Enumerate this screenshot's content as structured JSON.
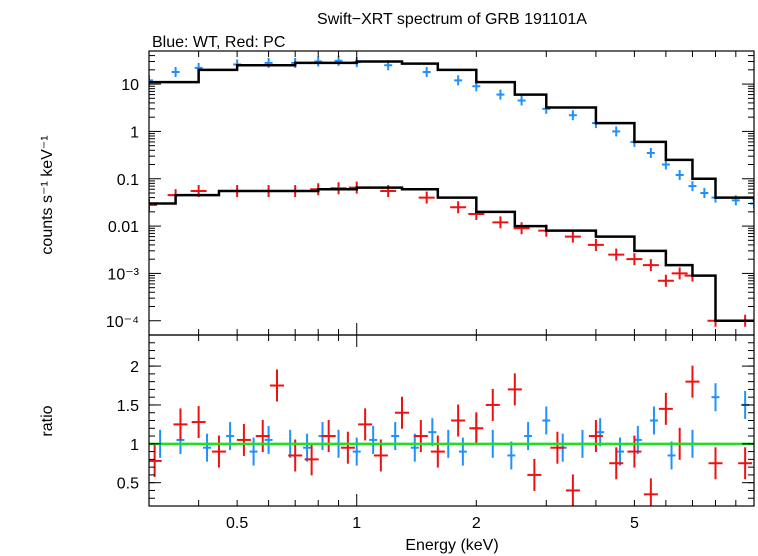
{
  "title": "Swift−XRT spectrum of GRB 191101A",
  "subtitle": "Blue: WT, Red: PC",
  "colors": {
    "wt": "#1e90ff",
    "pc": "#ee1111",
    "model": "#000000",
    "unity": "#22dd22"
  },
  "chart_data": [
    {
      "type": "scatter",
      "panel": "spectrum",
      "xlabel": "Energy (keV)",
      "ylabel": "counts s⁻¹ keV⁻¹",
      "xscale": "log",
      "yscale": "log",
      "xlim": [
        0.3,
        10
      ],
      "ylim": [
        5e-05,
        50
      ],
      "y_tick_labels": [
        "10",
        "1",
        "0.1",
        "0.01",
        "10⁻³",
        "10⁻⁴"
      ],
      "y_tick_values": [
        10,
        1,
        0.1,
        0.01,
        0.001,
        0.0001
      ],
      "series": [
        {
          "name": "WT",
          "color": "#1e90ff",
          "x": [
            0.3,
            0.35,
            0.4,
            0.5,
            0.6,
            0.7,
            0.8,
            0.9,
            1.0,
            1.2,
            1.5,
            1.8,
            2.0,
            2.3,
            2.6,
            3.0,
            3.5,
            4.0,
            4.5,
            5.0,
            5.5,
            6.0,
            6.5,
            7.0,
            7.5,
            8.0,
            9.0,
            10.0
          ],
          "y": [
            12,
            18,
            22,
            26,
            28,
            28,
            30,
            31,
            29,
            25,
            18,
            12,
            9,
            6,
            4.5,
            3,
            2.2,
            1.5,
            1.0,
            0.6,
            0.35,
            0.2,
            0.12,
            0.07,
            0.05,
            0.04,
            0.035,
            0.03
          ]
        },
        {
          "name": "PC",
          "color": "#ee1111",
          "x": [
            0.3,
            0.35,
            0.4,
            0.5,
            0.6,
            0.7,
            0.8,
            0.9,
            1.0,
            1.2,
            1.5,
            1.8,
            2.0,
            2.3,
            2.6,
            3.0,
            3.5,
            4.0,
            4.5,
            5.0,
            5.5,
            6.0,
            6.5,
            7.0,
            8.0,
            9.5
          ],
          "y": [
            0.028,
            0.045,
            0.055,
            0.055,
            0.055,
            0.055,
            0.06,
            0.063,
            0.065,
            0.055,
            0.04,
            0.025,
            0.018,
            0.012,
            0.009,
            0.008,
            0.006,
            0.004,
            0.0025,
            0.002,
            0.0015,
            0.0007,
            0.001,
            0.0009,
            0.0001,
            0.0001
          ]
        }
      ],
      "model": {
        "WT": {
          "x": [
            0.3,
            0.4,
            0.5,
            0.7,
            1.0,
            1.3,
            1.6,
            2.0,
            2.5,
            3.0,
            4.0,
            5.0,
            6.0,
            7.0,
            8.0,
            10.0
          ],
          "y": [
            11,
            20,
            25,
            28,
            30,
            27,
            20,
            11,
            6,
            3.2,
            1.5,
            0.6,
            0.25,
            0.1,
            0.04,
            0.035
          ]
        },
        "PC": {
          "x": [
            0.3,
            0.35,
            0.45,
            0.6,
            0.8,
            1.0,
            1.3,
            1.6,
            2.0,
            2.5,
            3.0,
            4.0,
            5.0,
            6.0,
            7.0,
            8.0,
            10.0
          ],
          "y": [
            0.03,
            0.045,
            0.055,
            0.055,
            0.06,
            0.065,
            0.06,
            0.04,
            0.02,
            0.01,
            0.008,
            0.006,
            0.003,
            0.0015,
            0.0009,
            0.0001,
            0.0001
          ]
        }
      }
    },
    {
      "type": "scatter",
      "panel": "ratio",
      "xlabel": "Energy (keV)",
      "ylabel": "ratio",
      "xscale": "log",
      "xlim": [
        0.3,
        10
      ],
      "ylim": [
        0.2,
        2.4
      ],
      "x_tick_labels": [
        "0.5",
        "1",
        "2",
        "5"
      ],
      "x_tick_values": [
        0.5,
        1,
        2,
        5
      ],
      "y_tick_labels": [
        "0.5",
        "1",
        "1.5",
        "2"
      ],
      "y_tick_values": [
        0.5,
        1,
        1.5,
        2
      ],
      "reference_line": 1,
      "series": [
        {
          "name": "WT",
          "color": "#1e90ff",
          "x": [
            0.32,
            0.36,
            0.42,
            0.48,
            0.55,
            0.6,
            0.68,
            0.75,
            0.82,
            0.9,
            1.0,
            1.1,
            1.25,
            1.4,
            1.55,
            1.7,
            1.85,
            2.0,
            2.2,
            2.45,
            2.7,
            3.0,
            3.3,
            3.7,
            4.1,
            4.6,
            5.1,
            5.6,
            6.2,
            7.0,
            8.0,
            9.5
          ],
          "y": [
            1.0,
            1.05,
            0.95,
            1.1,
            0.9,
            1.05,
            1.0,
            0.95,
            1.1,
            1.0,
            0.9,
            1.05,
            1.1,
            0.95,
            1.15,
            1.0,
            0.9,
            1.2,
            1.0,
            0.85,
            1.1,
            1.3,
            0.95,
            1.0,
            1.15,
            0.9,
            1.05,
            1.3,
            0.85,
            1.0,
            1.6,
            1.5
          ]
        },
        {
          "name": "PC",
          "color": "#ee1111",
          "x": [
            0.31,
            0.36,
            0.4,
            0.45,
            0.52,
            0.58,
            0.63,
            0.7,
            0.77,
            0.85,
            0.95,
            1.05,
            1.15,
            1.3,
            1.45,
            1.6,
            1.8,
            2.0,
            2.2,
            2.5,
            2.8,
            3.2,
            3.5,
            4.0,
            4.5,
            5.0,
            5.5,
            6.0,
            6.5,
            7.0,
            8.0,
            9.5
          ],
          "y": [
            0.78,
            1.25,
            1.28,
            0.9,
            1.05,
            1.1,
            1.75,
            0.85,
            0.8,
            1.1,
            0.95,
            1.25,
            0.85,
            1.4,
            1.1,
            0.9,
            1.3,
            1.2,
            1.5,
            1.7,
            0.6,
            0.95,
            0.4,
            1.1,
            0.75,
            0.9,
            0.35,
            1.45,
            1.0,
            1.8,
            0.75,
            0.75
          ]
        }
      ]
    }
  ]
}
